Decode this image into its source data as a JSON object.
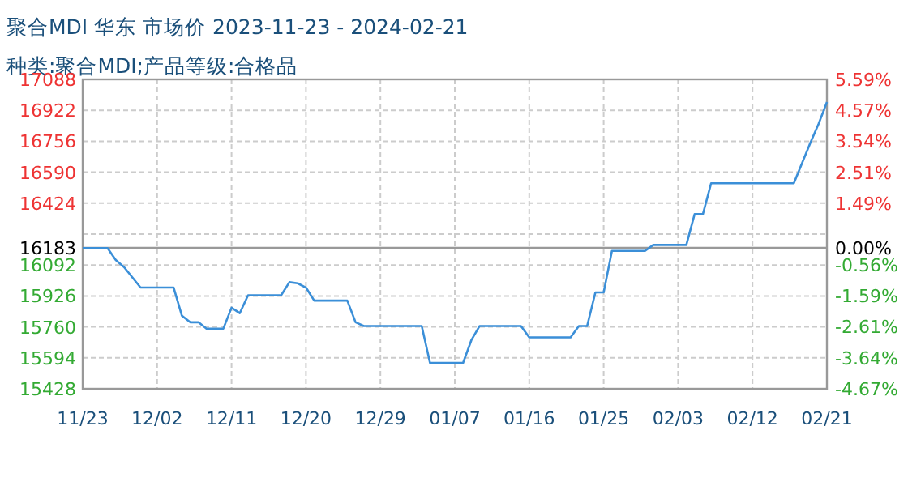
{
  "chart_data": {
    "type": "line",
    "title": "聚合MDI 华东 市场价 2023-11-23 - 2024-02-21",
    "subtitle": "种类:聚合MDI;产品等级:合格品",
    "x": [
      "2023-11-23",
      "2023-11-26",
      "2023-11-27",
      "2023-11-28",
      "2023-11-30",
      "2023-12-04",
      "2023-12-05",
      "2023-12-06",
      "2023-12-07",
      "2023-12-08",
      "2023-12-10",
      "2023-12-11",
      "2023-12-12",
      "2023-12-13",
      "2023-12-17",
      "2023-12-18",
      "2023-12-19",
      "2023-12-20",
      "2023-12-21",
      "2023-12-25",
      "2023-12-26",
      "2023-12-27",
      "2024-01-03",
      "2024-01-04",
      "2024-01-08",
      "2024-01-09",
      "2024-01-10",
      "2024-01-15",
      "2024-01-16",
      "2024-01-21",
      "2024-01-22",
      "2024-01-23",
      "2024-01-24",
      "2024-01-25",
      "2024-01-26",
      "2024-01-30",
      "2024-01-31",
      "2024-02-04",
      "2024-02-05",
      "2024-02-06",
      "2024-02-07",
      "2024-02-17",
      "2024-02-19",
      "2024-02-20",
      "2024-02-21"
    ],
    "series": [
      {
        "color": "#3b8fd8",
        "values": [
          16183,
          16183,
          16119,
          16081,
          15971,
          15971,
          15820,
          15785,
          15785,
          15750,
          15750,
          15863,
          15834,
          15930,
          15930,
          16000,
          15994,
          15971,
          15901,
          15901,
          15785,
          15765,
          15765,
          15567,
          15567,
          15689,
          15765,
          15765,
          15704,
          15704,
          15765,
          15765,
          15945,
          15945,
          16168,
          16168,
          16200,
          16200,
          16365,
          16365,
          16531,
          16531,
          16748,
          16850,
          16966
        ]
      }
    ],
    "xlim": [
      "2023-11-23",
      "2024-02-21"
    ],
    "xticks": [
      {
        "value": "2023-11-23",
        "label": "11/23"
      },
      {
        "value": "2023-12-02",
        "label": "12/02"
      },
      {
        "value": "2023-12-11",
        "label": "12/11"
      },
      {
        "value": "2023-12-20",
        "label": "12/20"
      },
      {
        "value": "2023-12-29",
        "label": "12/29"
      },
      {
        "value": "2024-01-07",
        "label": "01/07"
      },
      {
        "value": "2024-01-16",
        "label": "01/16"
      },
      {
        "value": "2024-01-25",
        "label": "01/25"
      },
      {
        "value": "2024-02-03",
        "label": "02/03"
      },
      {
        "value": "2024-02-12",
        "label": "02/12"
      },
      {
        "value": "2024-02-21",
        "label": "02/21"
      }
    ],
    "ylim": [
      15428,
      17088
    ],
    "yticks": [
      15428,
      15594,
      15760,
      15926,
      16092,
      {
        "value": 16258,
        "label": null
      },
      16424,
      16590,
      16756,
      16922,
      17088
    ],
    "y2lim": [
      -4.67,
      5.59
    ],
    "y2ticks": [
      {
        "value": -4.67,
        "label": "-4.67%"
      },
      {
        "value": -3.64,
        "label": "-3.64%"
      },
      {
        "value": -2.61,
        "label": "-2.61%"
      },
      {
        "value": -1.59,
        "label": "-1.59%"
      },
      {
        "value": -0.56,
        "label": "-0.56%"
      },
      {
        "value": 0,
        "label": "0.00%"
      },
      {
        "value": 0.46,
        "label": null
      },
      {
        "value": 1.49,
        "label": "1.49%"
      },
      {
        "value": 2.51,
        "label": "2.51%"
      },
      {
        "value": 3.54,
        "label": "3.54%"
      },
      {
        "value": 4.57,
        "label": "4.57%"
      },
      {
        "value": 5.59,
        "label": "5.59%"
      }
    ],
    "ref_lines": [
      {
        "axis": "y",
        "value": 16183,
        "label": "16183",
        "color": "#999999"
      }
    ],
    "grid": true
  }
}
